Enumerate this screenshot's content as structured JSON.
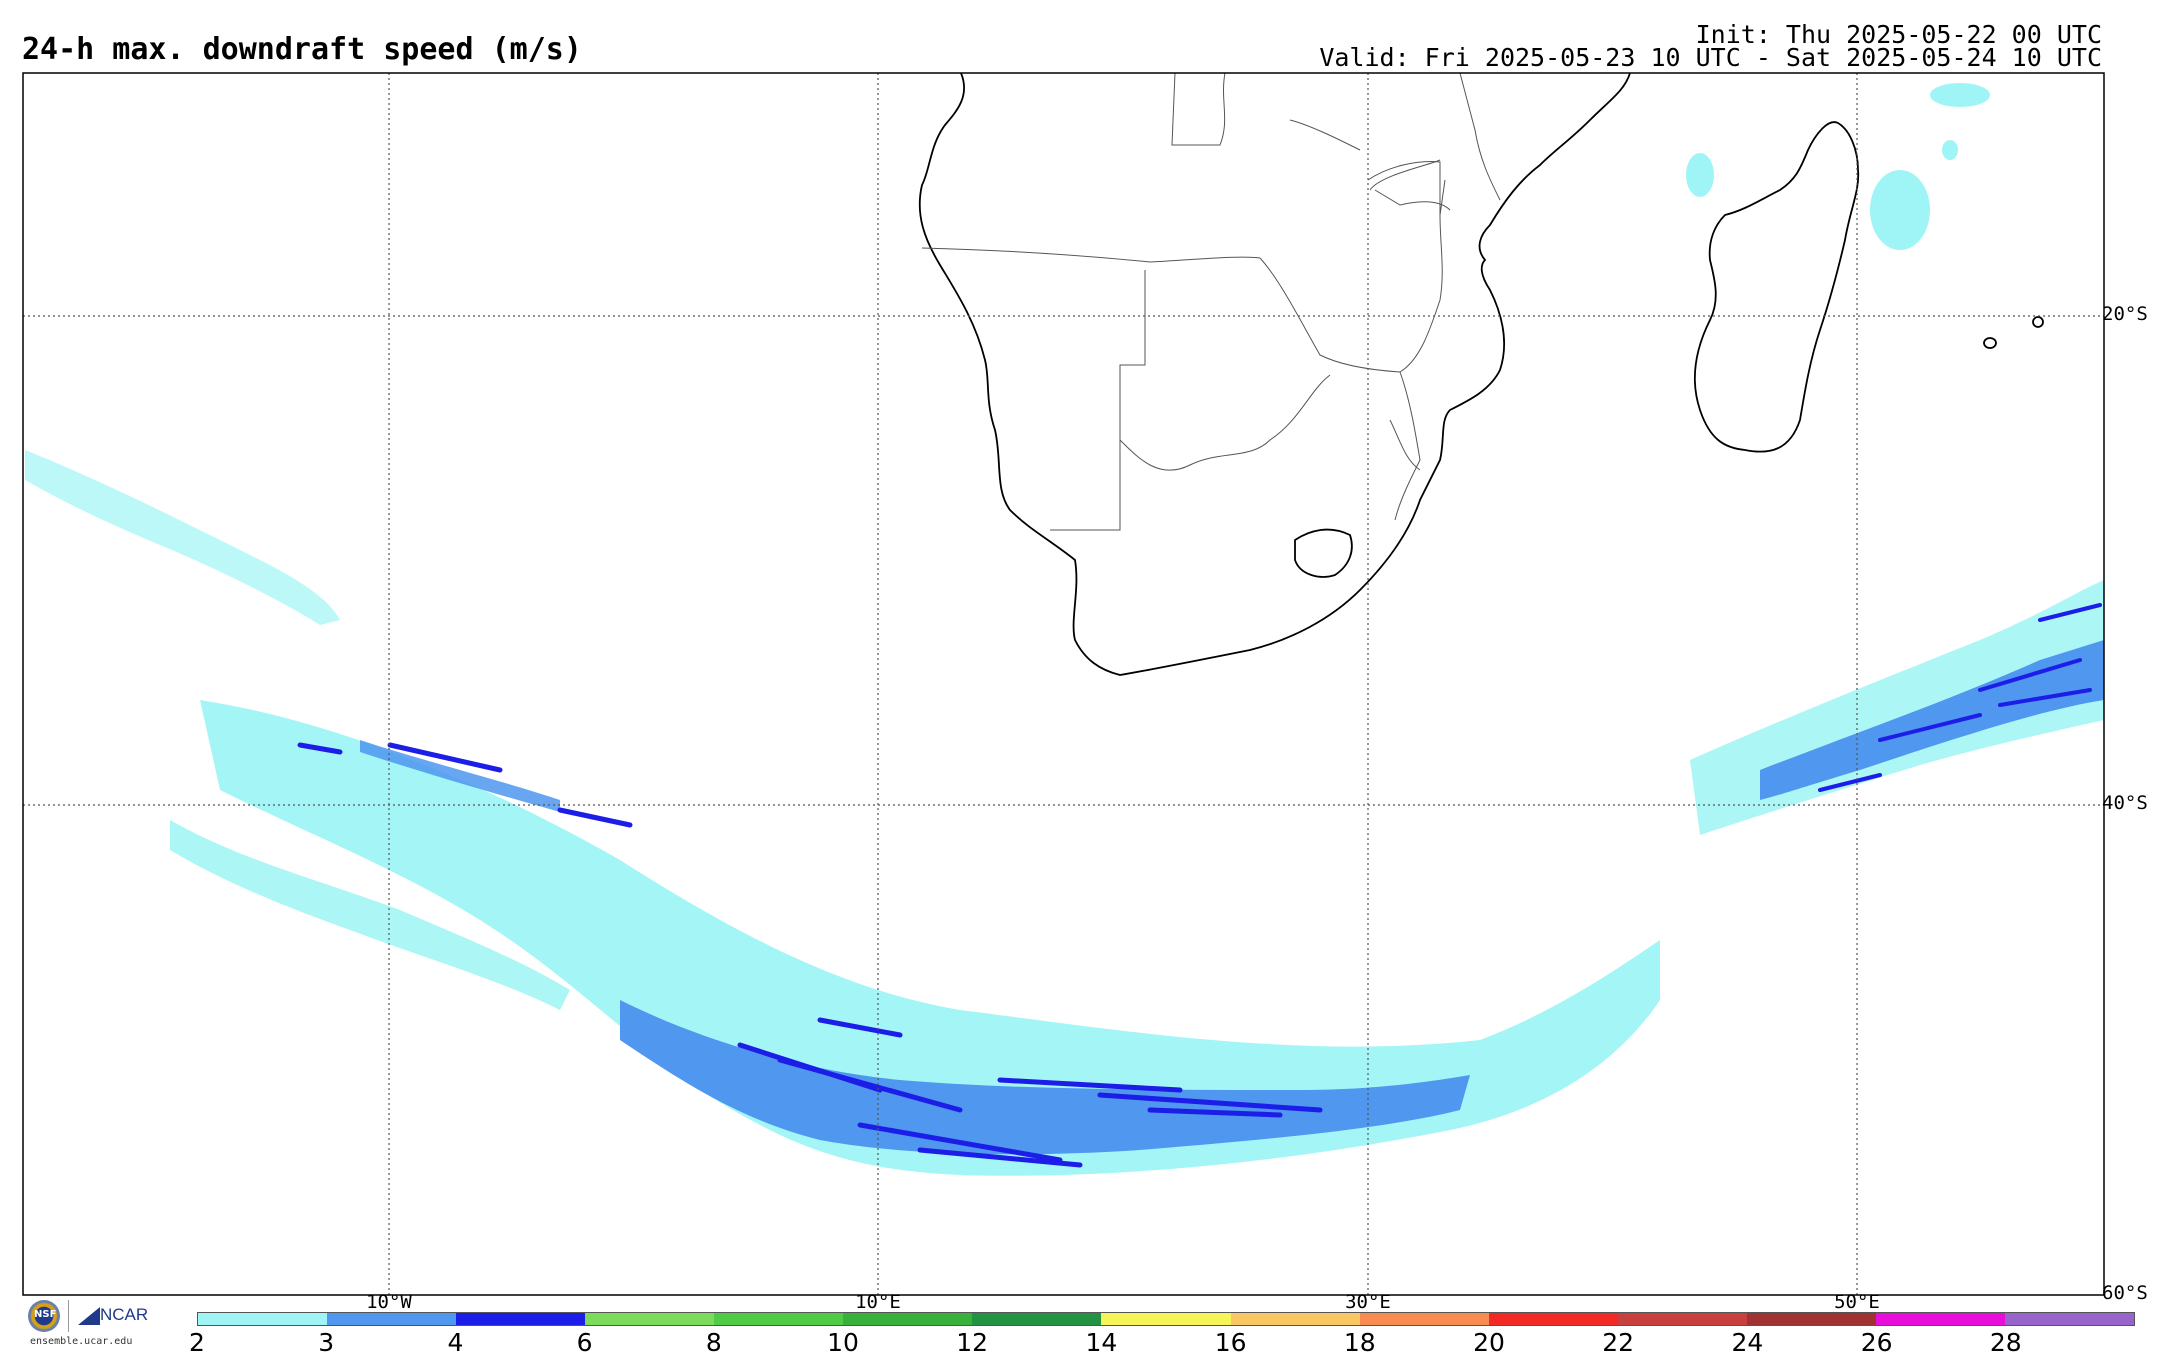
{
  "header": {
    "title": "24-h max. downdraft speed (m/s)",
    "init": "Init: Thu 2025-05-22 00 UTC",
    "valid": "Valid: Fri 2025-05-23 10 UTC - Sat 2025-05-24 10 UTC"
  },
  "map": {
    "projection": "lat-lon",
    "lon_range": [
      -25,
      60
    ],
    "lat_range": [
      -60,
      -10
    ],
    "lat_labels": [
      "20°S",
      "40°S",
      "60°S"
    ],
    "lon_labels": [
      "10°W",
      "10°E",
      "30°E",
      "50°E"
    ],
    "gridlines": "dotted"
  },
  "colorbar": {
    "ticks": [
      "2",
      "3",
      "4",
      "6",
      "8",
      "10",
      "12",
      "14",
      "16",
      "18",
      "20",
      "22",
      "24",
      "26",
      "28"
    ],
    "colors": [
      "#9ff5f5",
      "#4f97ef",
      "#1d1de8",
      "#7ddb5c",
      "#4fcb46",
      "#38b13a",
      "#239243",
      "#f5f558",
      "#f9c764",
      "#f88b4f",
      "#f22a25",
      "#c7403e",
      "#a13232",
      "#e70ed9",
      "#9765c9"
    ]
  },
  "logos": {
    "nsf": "NSF",
    "ncar": "NCAR",
    "url": "ensemble.ucar.edu"
  }
}
